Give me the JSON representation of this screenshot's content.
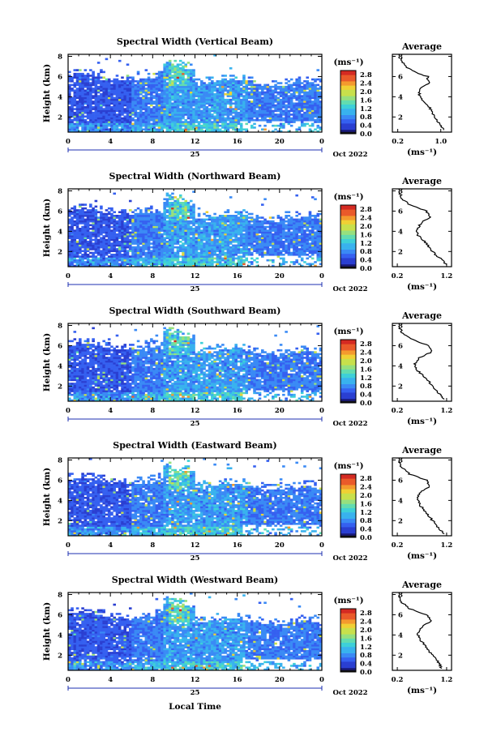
{
  "chart_data": [
    {
      "type": "heatmap",
      "title": "Spectral Width (Vertical Beam)",
      "ylabel": "Height (km)",
      "x_ticks": [
        "0",
        "4",
        "8",
        "12",
        "16",
        "20",
        "0"
      ],
      "y_ticks": [
        "2",
        "4",
        "6",
        "8"
      ],
      "xlim": [
        0,
        24
      ],
      "ylim": [
        0.5,
        8.2
      ],
      "date_day": "25",
      "date_month": "Oct 2022",
      "colorbar_unit": "(ms⁻¹)",
      "colorbar_ticks": [
        "0.0",
        "0.4",
        "0.8",
        "1.2",
        "1.6",
        "2.0",
        "2.4",
        "2.8"
      ],
      "colorbar_range": [
        0,
        3.0
      ],
      "profile": {
        "title": "Average",
        "xlabel": "(ms⁻¹)",
        "x_ticks": [
          "0.2",
          "1.0"
        ],
        "xlim": [
          0.1,
          1.2
        ],
        "y_ticks": [
          "2",
          "4",
          "6",
          "8"
        ],
        "points": [
          [
            1.05,
            0.7
          ],
          [
            1.0,
            1.2
          ],
          [
            0.9,
            1.8
          ],
          [
            0.85,
            2.4
          ],
          [
            0.78,
            3.0
          ],
          [
            0.65,
            3.6
          ],
          [
            0.6,
            4.2
          ],
          [
            0.62,
            4.8
          ],
          [
            0.78,
            5.4
          ],
          [
            0.75,
            6.0
          ],
          [
            0.45,
            6.6
          ],
          [
            0.3,
            7.2
          ],
          [
            0.28,
            7.8
          ]
        ]
      }
    },
    {
      "type": "heatmap",
      "title": "Spectral Width (Northward Beam)",
      "ylabel": "Height (km)",
      "x_ticks": [
        "0",
        "4",
        "8",
        "12",
        "16",
        "20",
        "0"
      ],
      "y_ticks": [
        "2",
        "4",
        "6",
        "8"
      ],
      "xlim": [
        0,
        24
      ],
      "ylim": [
        0.5,
        8.2
      ],
      "date_day": "25",
      "date_month": "Oct 2022",
      "colorbar_unit": "(ms⁻¹)",
      "colorbar_ticks": [
        "0.0",
        "0.4",
        "0.8",
        "1.2",
        "1.6",
        "2.0",
        "2.4",
        "2.8"
      ],
      "colorbar_range": [
        0,
        3.0
      ],
      "profile": {
        "title": "Average",
        "xlabel": "(ms⁻¹)",
        "x_ticks": [
          "0.2",
          "1.2"
        ],
        "xlim": [
          0.1,
          1.3
        ],
        "y_ticks": [
          "2",
          "4",
          "6",
          "8"
        ],
        "points": [
          [
            1.2,
            0.7
          ],
          [
            1.1,
            1.2
          ],
          [
            0.95,
            1.8
          ],
          [
            0.85,
            2.4
          ],
          [
            0.75,
            3.0
          ],
          [
            0.62,
            3.6
          ],
          [
            0.6,
            4.2
          ],
          [
            0.68,
            4.8
          ],
          [
            0.85,
            5.4
          ],
          [
            0.8,
            6.0
          ],
          [
            0.45,
            6.6
          ],
          [
            0.3,
            7.2
          ],
          [
            0.25,
            7.8
          ]
        ]
      }
    },
    {
      "type": "heatmap",
      "title": "Spectral Width (Southward Beam)",
      "ylabel": "Height (km)",
      "x_ticks": [
        "0",
        "4",
        "8",
        "12",
        "16",
        "20",
        "0"
      ],
      "y_ticks": [
        "2",
        "4",
        "6",
        "8"
      ],
      "xlim": [
        0,
        24
      ],
      "ylim": [
        0.5,
        8.2
      ],
      "date_day": "25",
      "date_month": "Oct 2022",
      "colorbar_unit": "(ms⁻¹)",
      "colorbar_ticks": [
        "0.0",
        "0.4",
        "0.8",
        "1.2",
        "1.6",
        "2.0",
        "2.4",
        "2.8"
      ],
      "colorbar_range": [
        0,
        3.0
      ],
      "profile": {
        "title": "Average",
        "xlabel": "(ms⁻¹)",
        "x_ticks": [
          "0.2",
          "1.2"
        ],
        "xlim": [
          0.1,
          1.3
        ],
        "y_ticks": [
          "2",
          "4",
          "6",
          "8"
        ],
        "points": [
          [
            1.15,
            0.7
          ],
          [
            1.05,
            1.2
          ],
          [
            0.95,
            1.8
          ],
          [
            0.85,
            2.4
          ],
          [
            0.72,
            3.0
          ],
          [
            0.6,
            3.6
          ],
          [
            0.55,
            4.2
          ],
          [
            0.65,
            4.8
          ],
          [
            0.9,
            5.4
          ],
          [
            0.85,
            6.0
          ],
          [
            0.5,
            6.6
          ],
          [
            0.3,
            7.2
          ],
          [
            0.25,
            7.8
          ]
        ]
      }
    },
    {
      "type": "heatmap",
      "title": "Spectral Width (Eastward Beam)",
      "ylabel": "Height (km)",
      "x_ticks": [
        "0",
        "4",
        "8",
        "12",
        "16",
        "20",
        "0"
      ],
      "y_ticks": [
        "2",
        "4",
        "6",
        "8"
      ],
      "xlim": [
        0,
        24
      ],
      "ylim": [
        0.5,
        8.2
      ],
      "date_day": "25",
      "date_month": "Oct 2022",
      "colorbar_unit": "(ms⁻¹)",
      "colorbar_ticks": [
        "0.0",
        "0.4",
        "0.8",
        "1.2",
        "1.6",
        "2.0",
        "2.4",
        "2.8"
      ],
      "colorbar_range": [
        0,
        3.0
      ],
      "profile": {
        "title": "Average",
        "xlabel": "(ms⁻¹)",
        "x_ticks": [
          "0.2",
          "1.2"
        ],
        "xlim": [
          0.1,
          1.3
        ],
        "y_ticks": [
          "2",
          "4",
          "6",
          "8"
        ],
        "points": [
          [
            1.15,
            0.7
          ],
          [
            1.05,
            1.2
          ],
          [
            0.95,
            1.8
          ],
          [
            0.85,
            2.4
          ],
          [
            0.75,
            3.0
          ],
          [
            0.65,
            3.6
          ],
          [
            0.6,
            4.2
          ],
          [
            0.68,
            4.8
          ],
          [
            0.85,
            5.4
          ],
          [
            0.8,
            6.0
          ],
          [
            0.45,
            6.6
          ],
          [
            0.3,
            7.2
          ],
          [
            0.22,
            7.8
          ]
        ]
      }
    },
    {
      "type": "heatmap",
      "title": "Spectral Width (Westward Beam)",
      "ylabel": "Height (km)",
      "x_ticks": [
        "0",
        "4",
        "8",
        "12",
        "16",
        "20",
        "0"
      ],
      "y_ticks": [
        "2",
        "4",
        "6",
        "8"
      ],
      "xlim": [
        0,
        24
      ],
      "ylim": [
        0.5,
        8.2
      ],
      "date_day": "25",
      "date_month": "Oct 2022",
      "xlabel": "Local Time",
      "colorbar_unit": "(ms⁻¹)",
      "colorbar_ticks": [
        "0.0",
        "0.4",
        "0.8",
        "1.2",
        "1.6",
        "2.0",
        "2.4",
        "2.8"
      ],
      "colorbar_range": [
        0,
        3.0
      ],
      "profile": {
        "title": "Average",
        "xlabel": "(ms⁻¹)",
        "x_ticks": [
          "0.2",
          "1.2"
        ],
        "xlim": [
          0.1,
          1.3
        ],
        "y_ticks": [
          "2",
          "4",
          "6",
          "8"
        ],
        "points": [
          [
            1.1,
            0.7
          ],
          [
            1.05,
            1.2
          ],
          [
            0.95,
            1.8
          ],
          [
            0.85,
            2.4
          ],
          [
            0.75,
            3.0
          ],
          [
            0.65,
            3.6
          ],
          [
            0.62,
            4.2
          ],
          [
            0.7,
            4.8
          ],
          [
            0.88,
            5.4
          ],
          [
            0.8,
            6.0
          ],
          [
            0.45,
            6.6
          ],
          [
            0.3,
            7.2
          ],
          [
            0.22,
            7.8
          ]
        ]
      }
    }
  ]
}
